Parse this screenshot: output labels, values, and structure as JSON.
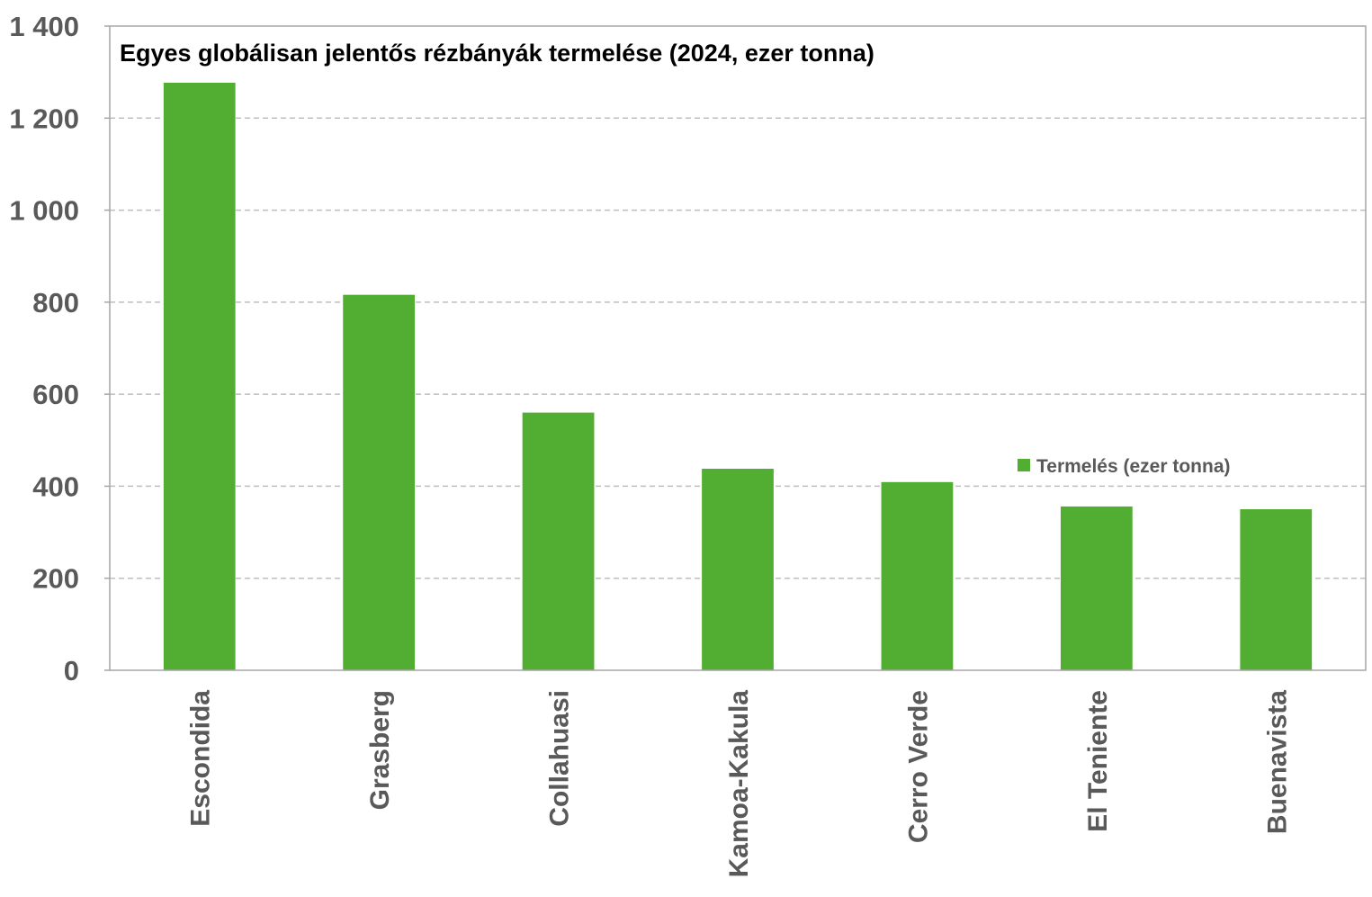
{
  "chart_data": {
    "type": "bar",
    "title": "Egyes globálisan jelentős rézbányák termelése (2024, ezer tonna)",
    "categories": [
      "Escondida",
      "Grasberg",
      "Collahuasi",
      "Kamoa-Kakula",
      "Cerro Verde",
      "El Teniente",
      "Buenavista"
    ],
    "series": [
      {
        "name": "Termelés (ezer tonna)",
        "values": [
          1277,
          816,
          560,
          438,
          409,
          356,
          350
        ],
        "color": "#52ae32"
      }
    ],
    "ylim": [
      0,
      1400
    ],
    "yticks": [
      0,
      200,
      400,
      600,
      800,
      1000,
      1200,
      1400
    ],
    "ytick_labels": [
      "0",
      "200",
      "400",
      "600",
      "800",
      "1 000",
      "1 200",
      "1 400"
    ],
    "grid": true,
    "legend_position": "right"
  }
}
